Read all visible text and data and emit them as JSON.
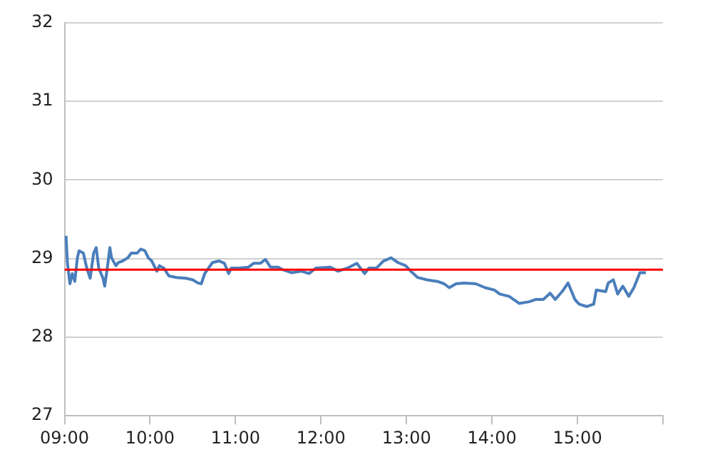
{
  "chart_data": {
    "type": "line",
    "xlim": [
      9,
      16
    ],
    "xticks": [
      {
        "value": 9,
        "label": "09:00"
      },
      {
        "value": 10,
        "label": "10:00"
      },
      {
        "value": 11,
        "label": "11:00"
      },
      {
        "value": 12,
        "label": "12:00"
      },
      {
        "value": 13,
        "label": "13:00"
      },
      {
        "value": 14,
        "label": "14:00"
      },
      {
        "value": 15,
        "label": "15:00"
      },
      {
        "value": 16,
        "label": null
      }
    ],
    "ylim": [
      27,
      32
    ],
    "yticks": [
      27,
      28,
      29,
      30,
      31,
      32
    ],
    "grid": "y",
    "legend": false,
    "marker": "none",
    "line_style": "solid",
    "ref_lines": [
      {
        "axis": "y",
        "value": 28.86,
        "color": "#ff0000"
      }
    ],
    "series": [
      {
        "color": "#4a7ebb",
        "x": [
          9.017,
          9.034,
          9.063,
          9.09,
          9.12,
          9.15,
          9.17,
          9.22,
          9.26,
          9.3,
          9.34,
          9.37,
          9.4,
          9.45,
          9.47,
          9.5,
          9.53,
          9.55,
          9.6,
          9.63,
          9.68,
          9.74,
          9.78,
          9.85,
          9.89,
          9.94,
          9.98,
          10.02,
          10.08,
          10.11,
          10.16,
          10.22,
          10.31,
          10.42,
          10.5,
          10.56,
          10.6,
          10.64,
          10.73,
          10.81,
          10.87,
          10.92,
          10.95,
          11.04,
          11.15,
          11.21,
          11.29,
          11.35,
          11.41,
          11.5,
          11.55,
          11.66,
          11.77,
          11.86,
          11.94,
          12.11,
          12.2,
          12.31,
          12.42,
          12.51,
          12.56,
          12.65,
          12.73,
          12.82,
          12.9,
          12.99,
          13.05,
          13.13,
          13.24,
          13.36,
          13.44,
          13.5,
          13.58,
          13.67,
          13.81,
          13.92,
          14.03,
          14.09,
          14.2,
          14.32,
          14.43,
          14.51,
          14.6,
          14.68,
          14.74,
          14.82,
          14.89,
          14.97,
          15.02,
          15.11,
          15.19,
          15.22,
          15.33,
          15.36,
          15.42,
          15.47,
          15.53,
          15.6,
          15.66,
          15.73,
          15.8
        ],
        "values": [
          29.29,
          28.94,
          28.68,
          28.81,
          28.71,
          29.01,
          29.1,
          29.07,
          28.88,
          28.75,
          29.07,
          29.14,
          28.88,
          28.75,
          28.65,
          28.88,
          29.14,
          29.01,
          28.91,
          28.95,
          28.97,
          29.01,
          29.07,
          29.07,
          29.12,
          29.1,
          29.01,
          28.97,
          28.84,
          28.91,
          28.88,
          28.78,
          28.76,
          28.75,
          28.73,
          28.69,
          28.68,
          28.81,
          28.95,
          28.97,
          28.94,
          28.81,
          28.88,
          28.88,
          28.89,
          28.94,
          28.94,
          28.99,
          28.89,
          28.89,
          28.86,
          28.82,
          28.84,
          28.81,
          28.88,
          28.89,
          28.84,
          28.88,
          28.94,
          28.81,
          28.88,
          28.88,
          28.97,
          29.01,
          28.95,
          28.91,
          28.84,
          28.76,
          28.73,
          28.71,
          28.68,
          28.63,
          28.68,
          28.69,
          28.68,
          28.63,
          28.6,
          28.55,
          28.52,
          28.43,
          28.45,
          28.48,
          28.48,
          28.56,
          28.48,
          28.58,
          28.69,
          28.48,
          28.42,
          28.39,
          28.42,
          28.6,
          28.58,
          28.69,
          28.73,
          28.55,
          28.65,
          28.52,
          28.63,
          28.82,
          28.82
        ]
      }
    ]
  }
}
